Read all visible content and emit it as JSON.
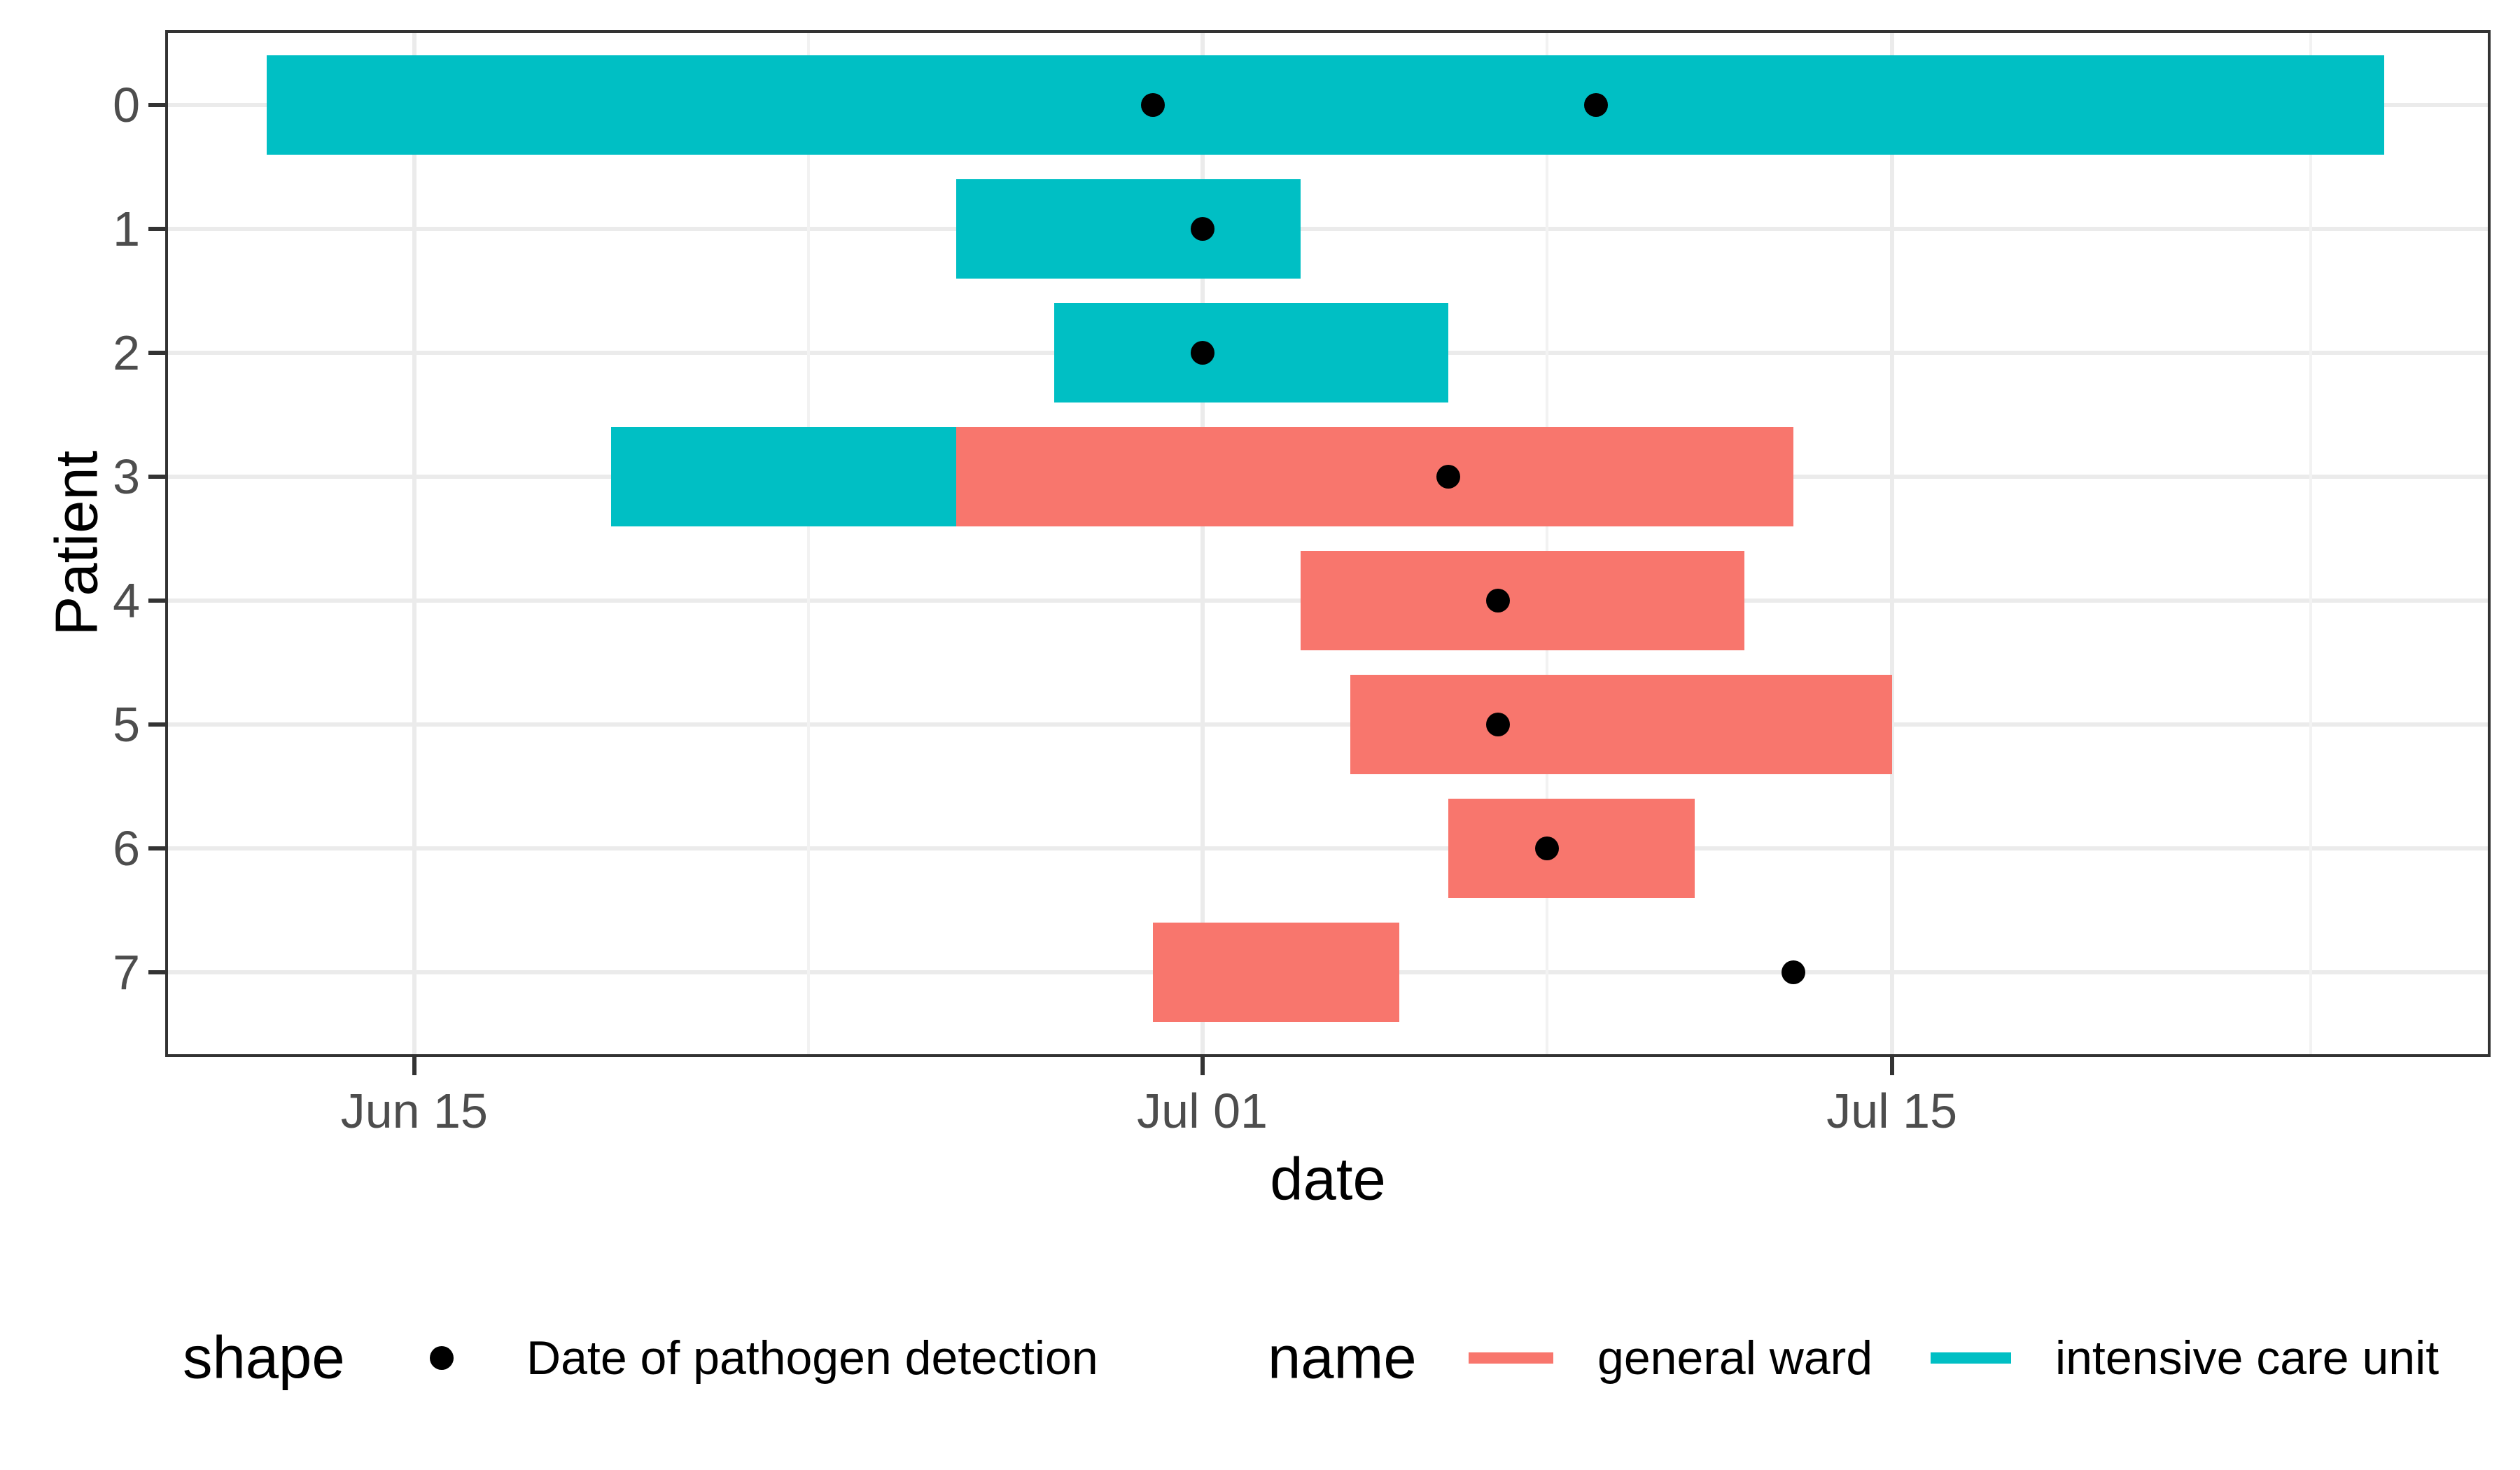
{
  "colors": {
    "general_ward": "#F8766D",
    "intensive_care_unit": "#00BFC4",
    "detection_dot": "#000000",
    "grid_major": "#EBEBEB",
    "grid_minor": "#F2F2F2",
    "panel_border": "#333333",
    "tick_label": "#4D4D4D"
  },
  "legend": {
    "shape": {
      "title": "shape",
      "item_label": "Date of pathogen detection",
      "key": "black-dot"
    },
    "name": {
      "title": "name",
      "items": [
        {
          "label": "general ward",
          "color": "#F8766D"
        },
        {
          "label": "intensive care unit",
          "color": "#00BFC4"
        }
      ]
    }
  },
  "chart_data": {
    "type": "bar",
    "subtype": "horizontal-interval-gantt",
    "title": "",
    "xlabel": "date",
    "ylabel": "Patient",
    "grid": "on (major x+y, minor x)",
    "legend_position": "bottom",
    "x_axis": {
      "unit": "day index: Jun n = n, Jul n = 30 + n",
      "ticks": [
        {
          "label": "Jun 15",
          "day": 15
        },
        {
          "label": "Jul 01",
          "day": 31
        },
        {
          "label": "Jul 15",
          "day": 45
        }
      ],
      "minor_gridline_days": [
        23,
        38,
        53.5
      ],
      "domain_days": [
        10.0,
        57.1
      ]
    },
    "y_axis": {
      "ticks": [
        {
          "label": "0",
          "value": 0
        },
        {
          "label": "1",
          "value": 1
        },
        {
          "label": "2",
          "value": 2
        },
        {
          "label": "3",
          "value": 3
        },
        {
          "label": "4",
          "value": 4
        },
        {
          "label": "5",
          "value": 5
        },
        {
          "label": "6",
          "value": 6
        },
        {
          "label": "7",
          "value": 7
        }
      ],
      "domain": [
        -0.58,
        7.66
      ]
    },
    "series": [
      {
        "patient": "0",
        "stays": [
          {
            "ward": "intensive care unit",
            "start": "Jun 12",
            "end": "Jul 25",
            "start_day": 12,
            "end_day": 55
          }
        ],
        "detections": [
          {
            "date": "Jun 30",
            "day": 30
          },
          {
            "date": "Jul 09",
            "day": 39
          }
        ]
      },
      {
        "patient": "1",
        "stays": [
          {
            "ward": "intensive care unit",
            "start": "Jun 26",
            "end": "Jul 03",
            "start_day": 26,
            "end_day": 33
          }
        ],
        "detections": [
          {
            "date": "Jul 01",
            "day": 31
          }
        ]
      },
      {
        "patient": "2",
        "stays": [
          {
            "ward": "intensive care unit",
            "start": "Jun 28",
            "end": "Jul 06",
            "start_day": 28,
            "end_day": 36
          }
        ],
        "detections": [
          {
            "date": "Jul 01",
            "day": 31
          }
        ]
      },
      {
        "patient": "3",
        "stays": [
          {
            "ward": "intensive care unit",
            "start": "Jun 19",
            "end": "Jun 26",
            "start_day": 19,
            "end_day": 26
          },
          {
            "ward": "general ward",
            "start": "Jun 26",
            "end": "Jul 13",
            "start_day": 26,
            "end_day": 43
          }
        ],
        "detections": [
          {
            "date": "Jul 06",
            "day": 36
          }
        ]
      },
      {
        "patient": "4",
        "stays": [
          {
            "ward": "general ward",
            "start": "Jul 03",
            "end": "Jul 12",
            "start_day": 33,
            "end_day": 42
          }
        ],
        "detections": [
          {
            "date": "Jul 07",
            "day": 37
          }
        ]
      },
      {
        "patient": "5",
        "stays": [
          {
            "ward": "general ward",
            "start": "Jul 04",
            "end": "Jul 15",
            "start_day": 34,
            "end_day": 45
          }
        ],
        "detections": [
          {
            "date": "Jul 07",
            "day": 37
          }
        ]
      },
      {
        "patient": "6",
        "stays": [
          {
            "ward": "general ward",
            "start": "Jul 06",
            "end": "Jul 11",
            "start_day": 36,
            "end_day": 41
          }
        ],
        "detections": [
          {
            "date": "Jul 08",
            "day": 38
          }
        ]
      },
      {
        "patient": "7",
        "stays": [
          {
            "ward": "general ward",
            "start": "Jun 30",
            "end": "Jul 05",
            "start_day": 30,
            "end_day": 35
          }
        ],
        "detections": [
          {
            "date": "Jul 13",
            "day": 43
          }
        ]
      }
    ]
  }
}
